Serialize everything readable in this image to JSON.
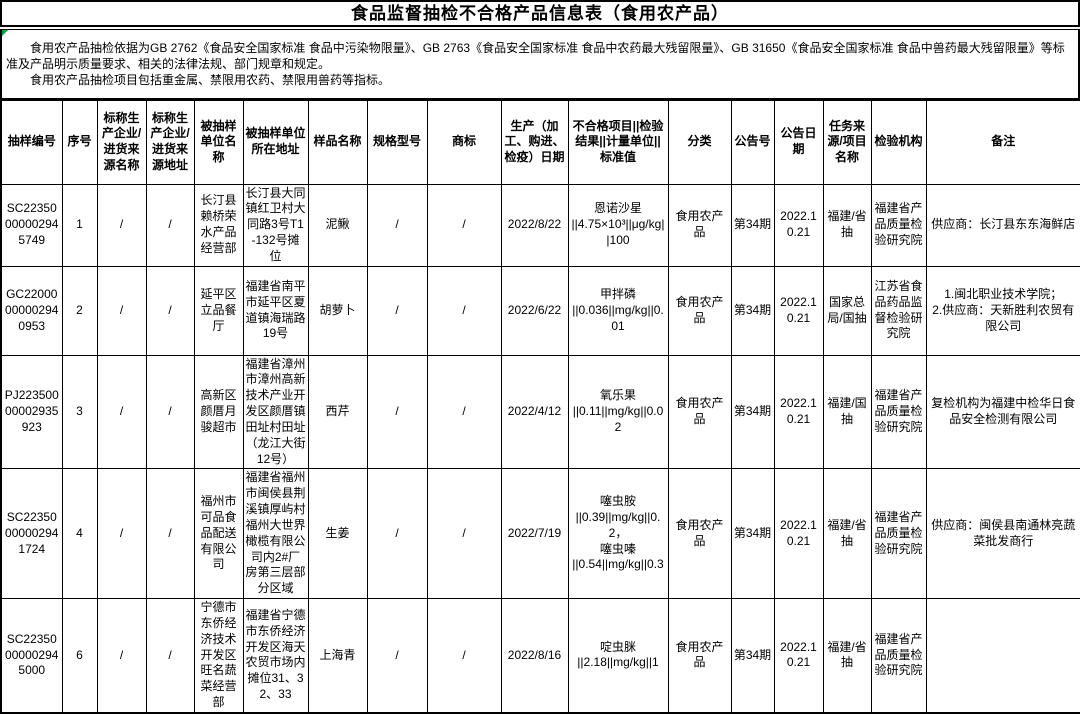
{
  "title": "食品监督抽检不合格产品信息表（食用农产品）",
  "intro": {
    "para1": "食用农产品抽检依据为GB 2762《食品安全国家标准 食品中污染物限量》、GB 2763《食品安全国家标准 食品中农药最大残留限量》、GB 31650《食品安全国家标准 食品中兽药最大残留限量》等标准及产品明示质量要求、相关的法律法规、部门规章和规定。",
    "para2": "食用农产品抽检项目包括重金属、禁限用农药、禁限用兽药等指标。"
  },
  "table": {
    "headers": [
      "抽样编号",
      "序号",
      "标称生产企业/进货来源名称",
      "标称生产企业/进货来源地址",
      "被抽样单位名称",
      "被抽样单位所在地址",
      "样品名称",
      "规格型号",
      "商标",
      "生产（加工、购进、检疫）日期",
      "不合格项目||检验结果||计量单位||标准值",
      "分类",
      "公告号",
      "公告日期",
      "任务来源/项目名称",
      "检验机构",
      "备注"
    ],
    "rows": [
      [
        "SC22350000002945749",
        "1",
        "/",
        "/",
        "长汀县赖桥荣水产品经营部",
        "长汀县大同镇红卫村大同路3号T1-132号摊位",
        "泥鳅",
        "/",
        "/",
        "2022/8/22",
        "恩诺沙星\n||4.75×10³||μg/kg||100",
        "食用农产品",
        "第34期",
        "2022.10.21",
        "福建/省抽",
        "福建省产品质量检验研究院",
        "供应商：长汀县东东海鲜店"
      ],
      [
        "GC22000000002940953",
        "2",
        "/",
        "/",
        "延平区立品餐厅",
        "福建省南平市延平区夏道镇海瑞路19号",
        "胡萝卜",
        "/",
        "/",
        "2022/6/22",
        "甲拌磷\n||0.036||mg/kg||0.01",
        "食用农产品",
        "第34期",
        "2022.10.21",
        "国家总局/国抽",
        "江苏省食品药品监督检验研究院",
        "1.闽北职业技术学院；\n2.供应商：天新胜利农贸有限公司"
      ],
      [
        "PJ22350000002935923",
        "3",
        "/",
        "/",
        "高新区颜厝月骏超市",
        "福建省漳州市漳州高新技术产业开发区颜厝镇田址村田址（龙江大街12号）",
        "西芹",
        "/",
        "/",
        "2022/4/12",
        "氧乐果\n||0.11||mg/kg||0.02",
        "食用农产品",
        "第34期",
        "2022.10.21",
        "福建/国抽",
        "福建省产品质量检验研究院",
        "复检机构为福建中检华日食品安全检测有限公司"
      ],
      [
        "SC22350000002941724",
        "4",
        "/",
        "/",
        "福州市可品食品配送有限公司",
        "福建省福州市闽侯县荆溪镇厚屿村福州大世界橄榄有限公司内2#厂房第三层部分区域",
        "生姜",
        "/",
        "/",
        "2022/7/19",
        "噻虫胺\n||0.39||mg/kg||0.2，\n噻虫嗪\n||0.54||mg/kg||0.3",
        "食用农产品",
        "第34期",
        "2022.10.21",
        "福建/省抽",
        "福建省产品质量检验研究院",
        "供应商：闽侯县南通林亮蔬菜批发商行"
      ],
      [
        "SC22350000002945000",
        "6",
        "/",
        "/",
        "宁德市东侨经济技术开发区旺名蔬菜经营部",
        "福建省宁德市东侨经济开发区海天农贸市场内摊位31、32、33",
        "上海青",
        "/",
        "/",
        "2022/8/16",
        "啶虫脒\n||2.18||mg/kg||1",
        "食用农产品",
        "第34期",
        "2022.10.21",
        "福建/省抽",
        "福建省产品质量检验研究院",
        ""
      ]
    ]
  }
}
